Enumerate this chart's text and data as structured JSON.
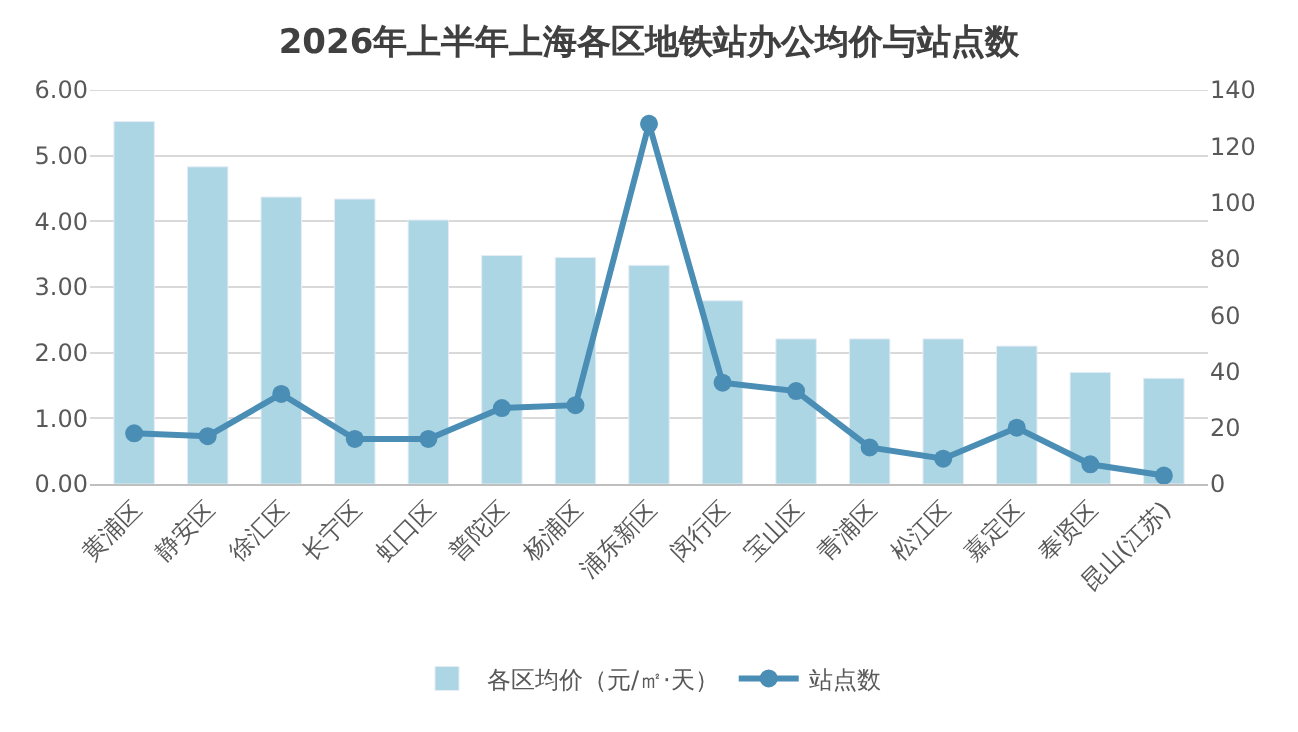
{
  "chart_data": {
    "type": "bar",
    "title": "2026年上半年上海各区地铁站办公均价与站点数",
    "categories": [
      "黄浦区",
      "静安区",
      "徐汇区",
      "长宁区",
      "虹口区",
      "普陀区",
      "杨浦区",
      "浦东新区",
      "闵行区",
      "宝山区",
      "青浦区",
      "松江区",
      "嘉定区",
      "奉贤区",
      "昆山(江苏)"
    ],
    "series": [
      {
        "name": "各区均价（元/㎡·天）",
        "color": "#add6e4",
        "values": [
          5.52,
          4.83,
          4.37,
          4.34,
          4.02,
          3.48,
          3.45,
          3.33,
          2.79,
          2.21,
          2.21,
          2.21,
          2.1,
          1.7,
          1.61
        ]
      },
      {
        "name": "站点数",
        "type": "line",
        "axis": "y2",
        "color": "#4a8db5",
        "values": [
          18,
          17,
          32,
          16,
          16,
          27,
          28,
          128,
          36,
          33,
          13,
          9,
          20,
          7,
          3
        ]
      }
    ],
    "ylim": [
      0,
      6
    ],
    "yticks": [
      {
        "value": 0,
        "label": "0.00"
      },
      {
        "value": 1,
        "label": "1.00"
      },
      {
        "value": 2,
        "label": "2.00"
      },
      {
        "value": 3,
        "label": "3.00"
      },
      {
        "value": 4,
        "label": "4.00"
      },
      {
        "value": 5,
        "label": "5.00"
      },
      {
        "value": 6,
        "label": "6.00"
      }
    ],
    "y2lim": [
      0,
      140
    ],
    "y2ticks": [
      0,
      20,
      40,
      60,
      80,
      100,
      120,
      140
    ],
    "grid": "y",
    "legend": "bottom",
    "marker": "circle",
    "line_style": "solid"
  }
}
